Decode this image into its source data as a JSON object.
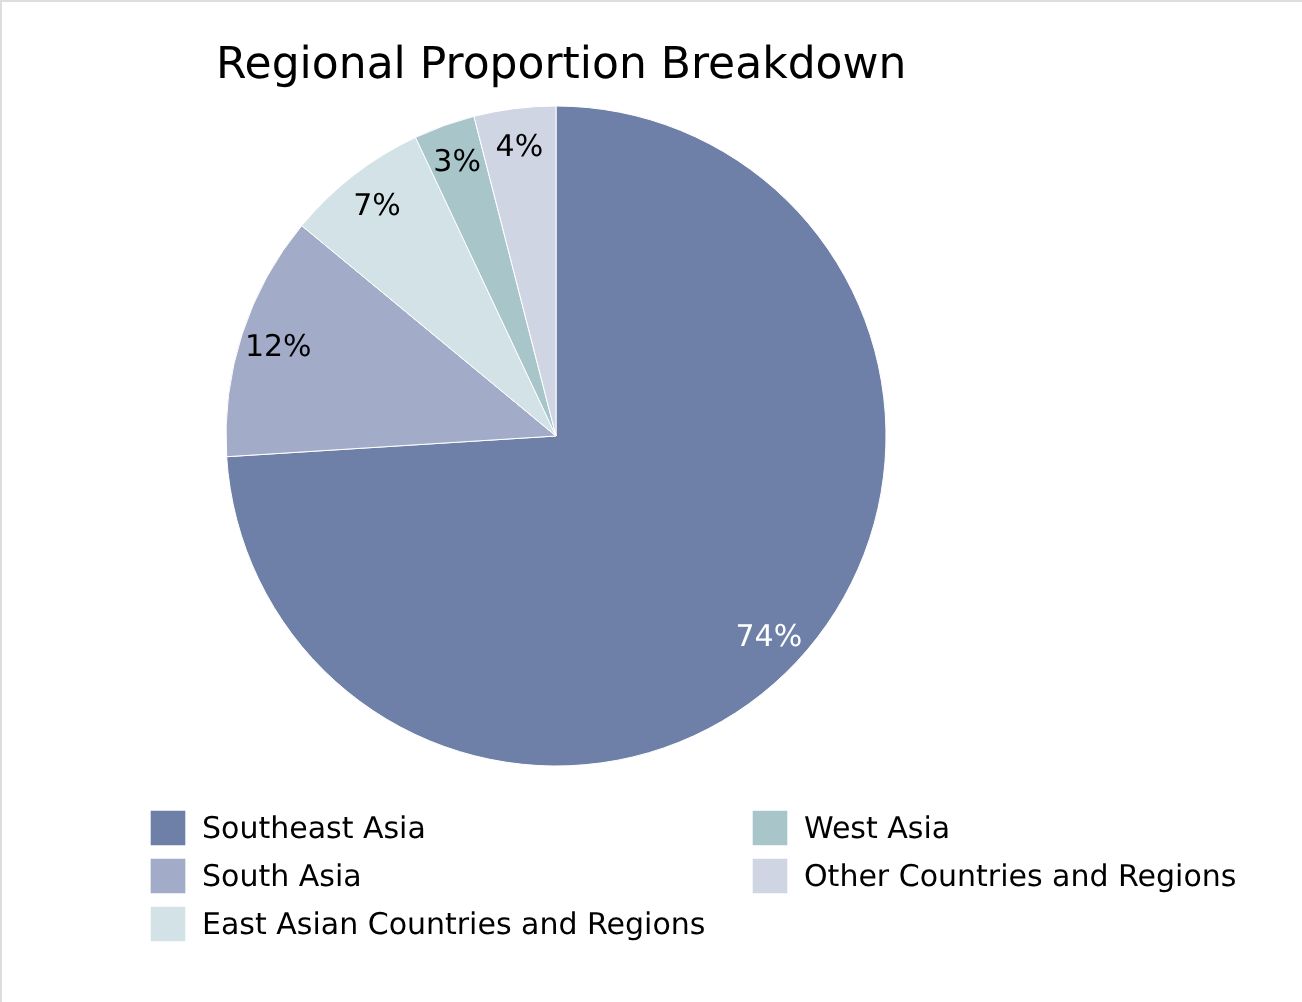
{
  "chart_data": {
    "type": "pie",
    "title": "Regional Proportion Breakdown",
    "categories": [
      "Southeast Asia",
      "South Asia",
      "East Asian Countries and Regions",
      "West Asia",
      "Other Countries and Regions"
    ],
    "values": [
      74,
      12,
      7,
      3,
      4
    ],
    "value_labels": [
      "74%",
      "12%",
      "7%",
      "3%",
      "4%"
    ],
    "colors": [
      "#6e7fa8",
      "#a2acc8",
      "#d3e2e6",
      "#a8c5c9",
      "#cfd5e3"
    ],
    "legend": "bottom"
  }
}
